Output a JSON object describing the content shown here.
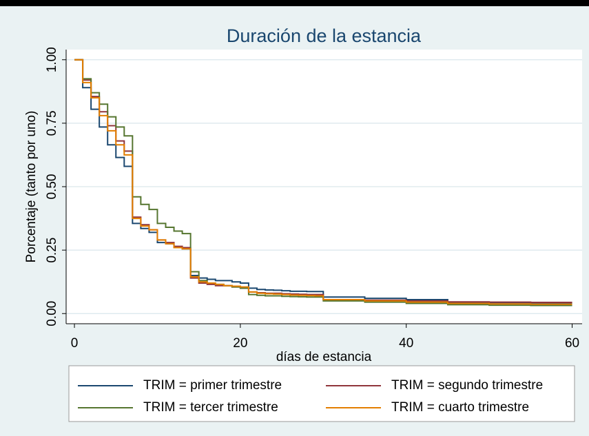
{
  "chart_data": {
    "type": "step",
    "title": "Duración de la estancia",
    "x_label": "días de estancia",
    "y_label": "Porcentaje (tanto por uno)",
    "x": [
      0,
      1,
      2,
      3,
      4,
      5,
      6,
      7,
      8,
      9,
      10,
      11,
      12,
      13,
      14,
      15,
      16,
      17,
      18,
      19,
      20,
      21,
      22,
      23,
      24,
      25,
      26,
      27,
      28,
      29,
      30,
      35,
      40,
      45,
      50,
      55,
      60
    ],
    "series": [
      {
        "name": "TRIM = primer trimestre",
        "color": "#1a476f",
        "values": [
          1,
          0.89,
          0.805,
          0.735,
          0.665,
          0.615,
          0.58,
          0.355,
          0.335,
          0.32,
          0.28,
          0.275,
          0.26,
          0.255,
          0.15,
          0.14,
          0.135,
          0.13,
          0.13,
          0.125,
          0.12,
          0.1,
          0.095,
          0.093,
          0.092,
          0.09,
          0.088,
          0.088,
          0.087,
          0.087,
          0.065,
          0.06,
          0.055,
          0.045,
          0.043,
          0.042,
          0.042
        ]
      },
      {
        "name": "TRIM = segundo trimestre",
        "color": "#90353b",
        "values": [
          1,
          0.92,
          0.855,
          0.795,
          0.74,
          0.68,
          0.64,
          0.38,
          0.35,
          0.33,
          0.29,
          0.28,
          0.265,
          0.26,
          0.14,
          0.12,
          0.115,
          0.11,
          0.11,
          0.105,
          0.1,
          0.085,
          0.082,
          0.08,
          0.08,
          0.078,
          0.077,
          0.076,
          0.075,
          0.075,
          0.055,
          0.053,
          0.05,
          0.046,
          0.045,
          0.044,
          0.044
        ]
      },
      {
        "name": "TRIM = tercer trimestre",
        "color": "#55752f",
        "values": [
          1,
          0.925,
          0.87,
          0.825,
          0.775,
          0.735,
          0.7,
          0.46,
          0.43,
          0.41,
          0.355,
          0.34,
          0.325,
          0.315,
          0.165,
          0.13,
          0.12,
          0.115,
          0.11,
          0.105,
          0.1,
          0.075,
          0.072,
          0.07,
          0.07,
          0.068,
          0.067,
          0.066,
          0.065,
          0.065,
          0.05,
          0.045,
          0.04,
          0.035,
          0.033,
          0.032,
          0.032
        ]
      },
      {
        "name": "TRIM = cuarto trimestre",
        "color": "#e37e00",
        "values": [
          1,
          0.91,
          0.85,
          0.78,
          0.72,
          0.665,
          0.625,
          0.375,
          0.345,
          0.33,
          0.29,
          0.275,
          0.26,
          0.255,
          0.145,
          0.125,
          0.12,
          0.115,
          0.11,
          0.108,
          0.105,
          0.085,
          0.08,
          0.078,
          0.077,
          0.075,
          0.073,
          0.072,
          0.071,
          0.07,
          0.055,
          0.05,
          0.045,
          0.04,
          0.038,
          0.037,
          0.037
        ]
      }
    ],
    "xlim": [
      -1,
      61.2
    ],
    "ylim": [
      -0.04,
      1.04
    ],
    "xticks": [
      0,
      20,
      40,
      60
    ],
    "yticks": [
      {
        "value": 0,
        "label": "0.00"
      },
      {
        "value": 0.25,
        "label": "0.25"
      },
      {
        "value": 0.5,
        "label": "0.50"
      },
      {
        "value": 0.75,
        "label": "0.75"
      },
      {
        "value": 1,
        "label": "1.00"
      }
    ],
    "grid": true,
    "legend": "bottom"
  }
}
